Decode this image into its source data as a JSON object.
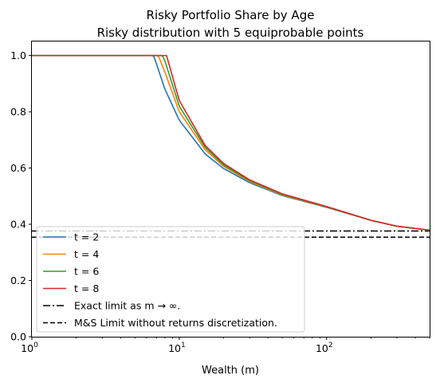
{
  "chart_data": {
    "type": "line",
    "title": "Risky Portfolio Share by Age",
    "subtitle": "Risky distribution with 5 equiprobable points",
    "xlabel": "Wealth (m)",
    "ylabel": "",
    "x_scale": "log",
    "xlim": [
      1,
      500
    ],
    "ylim": [
      0,
      1.05
    ],
    "grid": false,
    "legend_position": "lower-left",
    "x_ticks": [
      {
        "value": 1,
        "base": "10",
        "exp": "0"
      },
      {
        "value": 10,
        "base": "10",
        "exp": "1"
      },
      {
        "value": 100,
        "base": "10",
        "exp": "2"
      }
    ],
    "y_ticks": [
      "0.0",
      "0.2",
      "0.4",
      "0.6",
      "0.8",
      "1.0"
    ],
    "series": [
      {
        "name": "t = 2",
        "color": "#1f77b4",
        "kink": 6.7,
        "x": [
          1,
          6.7,
          8,
          10,
          15,
          20,
          30,
          50,
          100,
          200,
          300,
          500
        ],
        "y": [
          1.0,
          1.0,
          0.88,
          0.77,
          0.65,
          0.598,
          0.548,
          0.502,
          0.46,
          0.414,
          0.393,
          0.379
        ]
      },
      {
        "name": "t = 4",
        "color": "#ff7f0e",
        "kink": 7.2,
        "x": [
          1,
          7.2,
          8,
          10,
          15,
          20,
          30,
          50,
          100,
          200,
          300,
          500
        ],
        "y": [
          1.0,
          1.0,
          0.94,
          0.8,
          0.665,
          0.606,
          0.552,
          0.504,
          0.461,
          0.414,
          0.393,
          0.379
        ]
      },
      {
        "name": "t = 6",
        "color": "#2ca02c",
        "kink": 7.7,
        "x": [
          1,
          7.7,
          8,
          10,
          15,
          20,
          30,
          50,
          100,
          200,
          300,
          500
        ],
        "y": [
          1.0,
          1.0,
          0.98,
          0.82,
          0.673,
          0.611,
          0.555,
          0.506,
          0.462,
          0.414,
          0.393,
          0.379
        ]
      },
      {
        "name": "t = 8",
        "color": "#d62728",
        "kink": 8.2,
        "x": [
          1,
          8.2,
          10,
          15,
          20,
          30,
          50,
          100,
          200,
          300,
          500
        ],
        "y": [
          1.0,
          1.0,
          0.84,
          0.68,
          0.616,
          0.558,
          0.508,
          0.463,
          0.414,
          0.393,
          0.379
        ]
      }
    ],
    "reference_lines": [
      {
        "name": "Exact limit as m → ∞.",
        "y": 0.376,
        "style": "dashdot",
        "color": "#000000"
      },
      {
        "name": "M&S Limit without returns discretization.",
        "y": 0.354,
        "style": "dashed",
        "color": "#000000"
      }
    ]
  }
}
